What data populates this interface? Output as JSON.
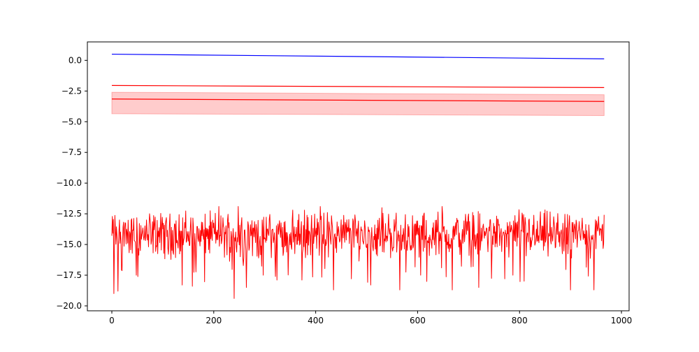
{
  "chart_data": {
    "type": "line",
    "title": "",
    "xlabel": "",
    "ylabel": "",
    "xlim": [
      -48,
      1015
    ],
    "ylim": [
      -20.4,
      1.5
    ],
    "x_ticks": [
      0,
      200,
      400,
      600,
      800,
      1000
    ],
    "x_tick_labels": [
      "0",
      "200",
      "400",
      "600",
      "800",
      "1000"
    ],
    "y_ticks": [
      0.0,
      -2.5,
      -5.0,
      -7.5,
      -10.0,
      -12.5,
      -15.0,
      -17.5,
      -20.0
    ],
    "y_tick_labels": [
      "0.0",
      "−2.5",
      "−5.0",
      "−7.5",
      "−10.0",
      "−12.5",
      "−15.0",
      "−17.5",
      "−20.0"
    ],
    "grid": false,
    "colors": {
      "blue": "#0000ff",
      "red": "#ff0000",
      "band": "#ff0000"
    },
    "series": [
      {
        "color": "blue",
        "x": [
          0,
          966
        ],
        "y": [
          0.5,
          0.12
        ]
      },
      {
        "color": "red",
        "x": [
          0,
          966
        ],
        "y": [
          -2.05,
          -2.22
        ]
      },
      {
        "color": "red",
        "x": [
          0,
          966
        ],
        "y": [
          -3.15,
          -3.35
        ]
      }
    ],
    "band": {
      "color": "red",
      "x": [
        0,
        966
      ],
      "upper": [
        -2.6,
        -2.8
      ],
      "lower": [
        -4.35,
        -4.5
      ]
    },
    "noise_series": {
      "color": "red",
      "x_start": 0,
      "x_end": 966,
      "n_points": 967,
      "mean": -14.2,
      "min": -19.4,
      "max": -11.9,
      "notable_points": [
        {
          "x": 4,
          "y": -19.0
        },
        {
          "x": 12,
          "y": -18.8
        },
        {
          "x": 48,
          "y": -17.5
        },
        {
          "x": 138,
          "y": -18.3
        },
        {
          "x": 158,
          "y": -18.4
        },
        {
          "x": 210,
          "y": -11.9
        },
        {
          "x": 240,
          "y": -19.4
        },
        {
          "x": 248,
          "y": -11.9
        },
        {
          "x": 264,
          "y": -18.5
        },
        {
          "x": 297,
          "y": -17.5
        },
        {
          "x": 324,
          "y": -17.9
        },
        {
          "x": 373,
          "y": -17.9
        },
        {
          "x": 409,
          "y": -11.9
        },
        {
          "x": 435,
          "y": -18.7
        },
        {
          "x": 470,
          "y": -17.8
        },
        {
          "x": 508,
          "y": -18.3
        },
        {
          "x": 530,
          "y": -12.0
        },
        {
          "x": 565,
          "y": -18.7
        },
        {
          "x": 606,
          "y": -17.5
        },
        {
          "x": 648,
          "y": -11.9
        },
        {
          "x": 668,
          "y": -18.7
        },
        {
          "x": 720,
          "y": -18.5
        },
        {
          "x": 787,
          "y": -17.5
        },
        {
          "x": 900,
          "y": -18.7
        },
        {
          "x": 946,
          "y": -18.7
        }
      ]
    }
  }
}
